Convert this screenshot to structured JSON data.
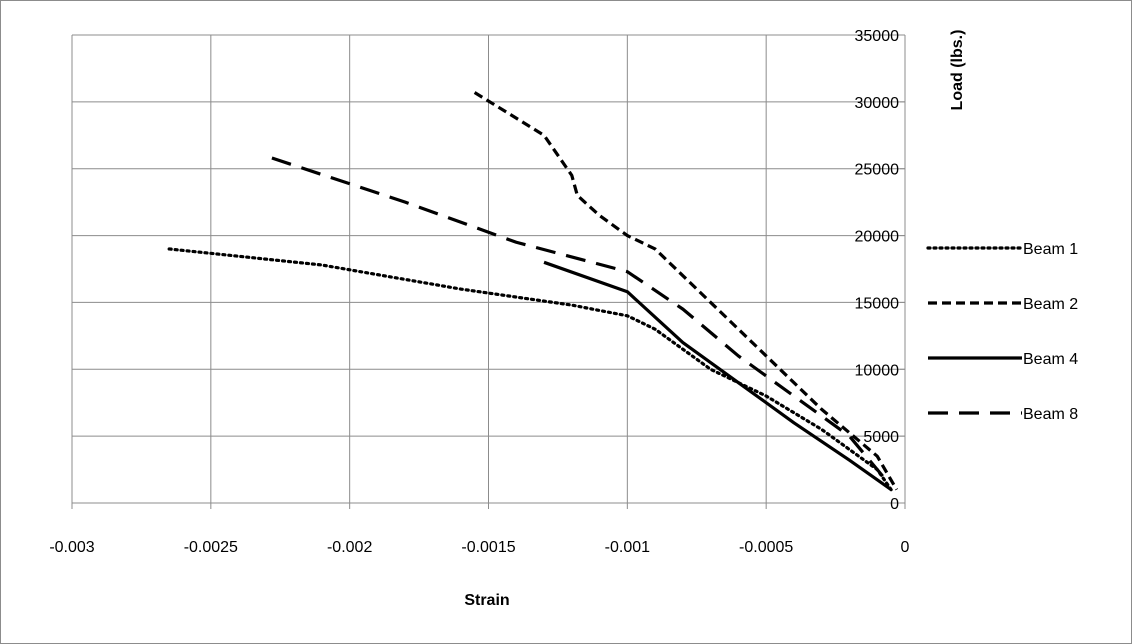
{
  "chart_data": {
    "type": "scatter",
    "xlabel": "Strain",
    "ylabel": "Load (lbs.)",
    "xlim": [
      -0.003,
      0
    ],
    "ylim": [
      0,
      35000
    ],
    "x_ticks": [
      "-0.003",
      "-0.0025",
      "-0.002",
      "-0.0015",
      "-0.001",
      "-0.0005",
      "0"
    ],
    "y_ticks": [
      "0",
      "5000",
      "10000",
      "15000",
      "20000",
      "25000",
      "30000",
      "35000"
    ],
    "grid": true,
    "legend": "right",
    "y_axis_position": "right",
    "series": [
      {
        "name": "Beam 1",
        "line_style": "dotted",
        "color": "#000000",
        "x": [
          -0.00265,
          -0.0021,
          -0.0016,
          -0.0012,
          -0.001,
          -0.0009,
          -0.0007,
          -0.0005,
          -0.0003,
          -0.0001,
          -5e-05
        ],
        "y": [
          19000,
          17800,
          16000,
          14800,
          14000,
          13000,
          10000,
          8000,
          5500,
          2500,
          1000
        ]
      },
      {
        "name": "Beam 2",
        "line_style": "dashed",
        "color": "#000000",
        "x": [
          -0.00155,
          -0.0013,
          -0.00125,
          -0.0012,
          -0.00118,
          -0.0011,
          -0.001,
          -0.0009,
          -0.0007,
          -0.0005,
          -0.0003,
          -0.0001,
          -3e-05
        ],
        "y": [
          30700,
          27500,
          26000,
          24500,
          23000,
          21500,
          20000,
          19000,
          15000,
          11000,
          7000,
          3500,
          1000
        ]
      },
      {
        "name": "Beam 4",
        "line_style": "solid",
        "color": "#000000",
        "x": [
          -0.0013,
          -0.001,
          -0.0008,
          -0.0006,
          -0.0004,
          -0.0002,
          -5e-05
        ],
        "y": [
          18000,
          15800,
          12000,
          9000,
          6000,
          3200,
          1000
        ]
      },
      {
        "name": "Beam 8",
        "line_style": "long-dash",
        "color": "#000000",
        "x": [
          -0.00228,
          -0.0018,
          -0.0014,
          -0.001,
          -0.0008,
          -0.0006,
          -0.0004,
          -0.0002,
          -8e-05
        ],
        "y": [
          25800,
          22500,
          19500,
          17300,
          14500,
          11000,
          8000,
          5000,
          2000
        ]
      }
    ]
  }
}
